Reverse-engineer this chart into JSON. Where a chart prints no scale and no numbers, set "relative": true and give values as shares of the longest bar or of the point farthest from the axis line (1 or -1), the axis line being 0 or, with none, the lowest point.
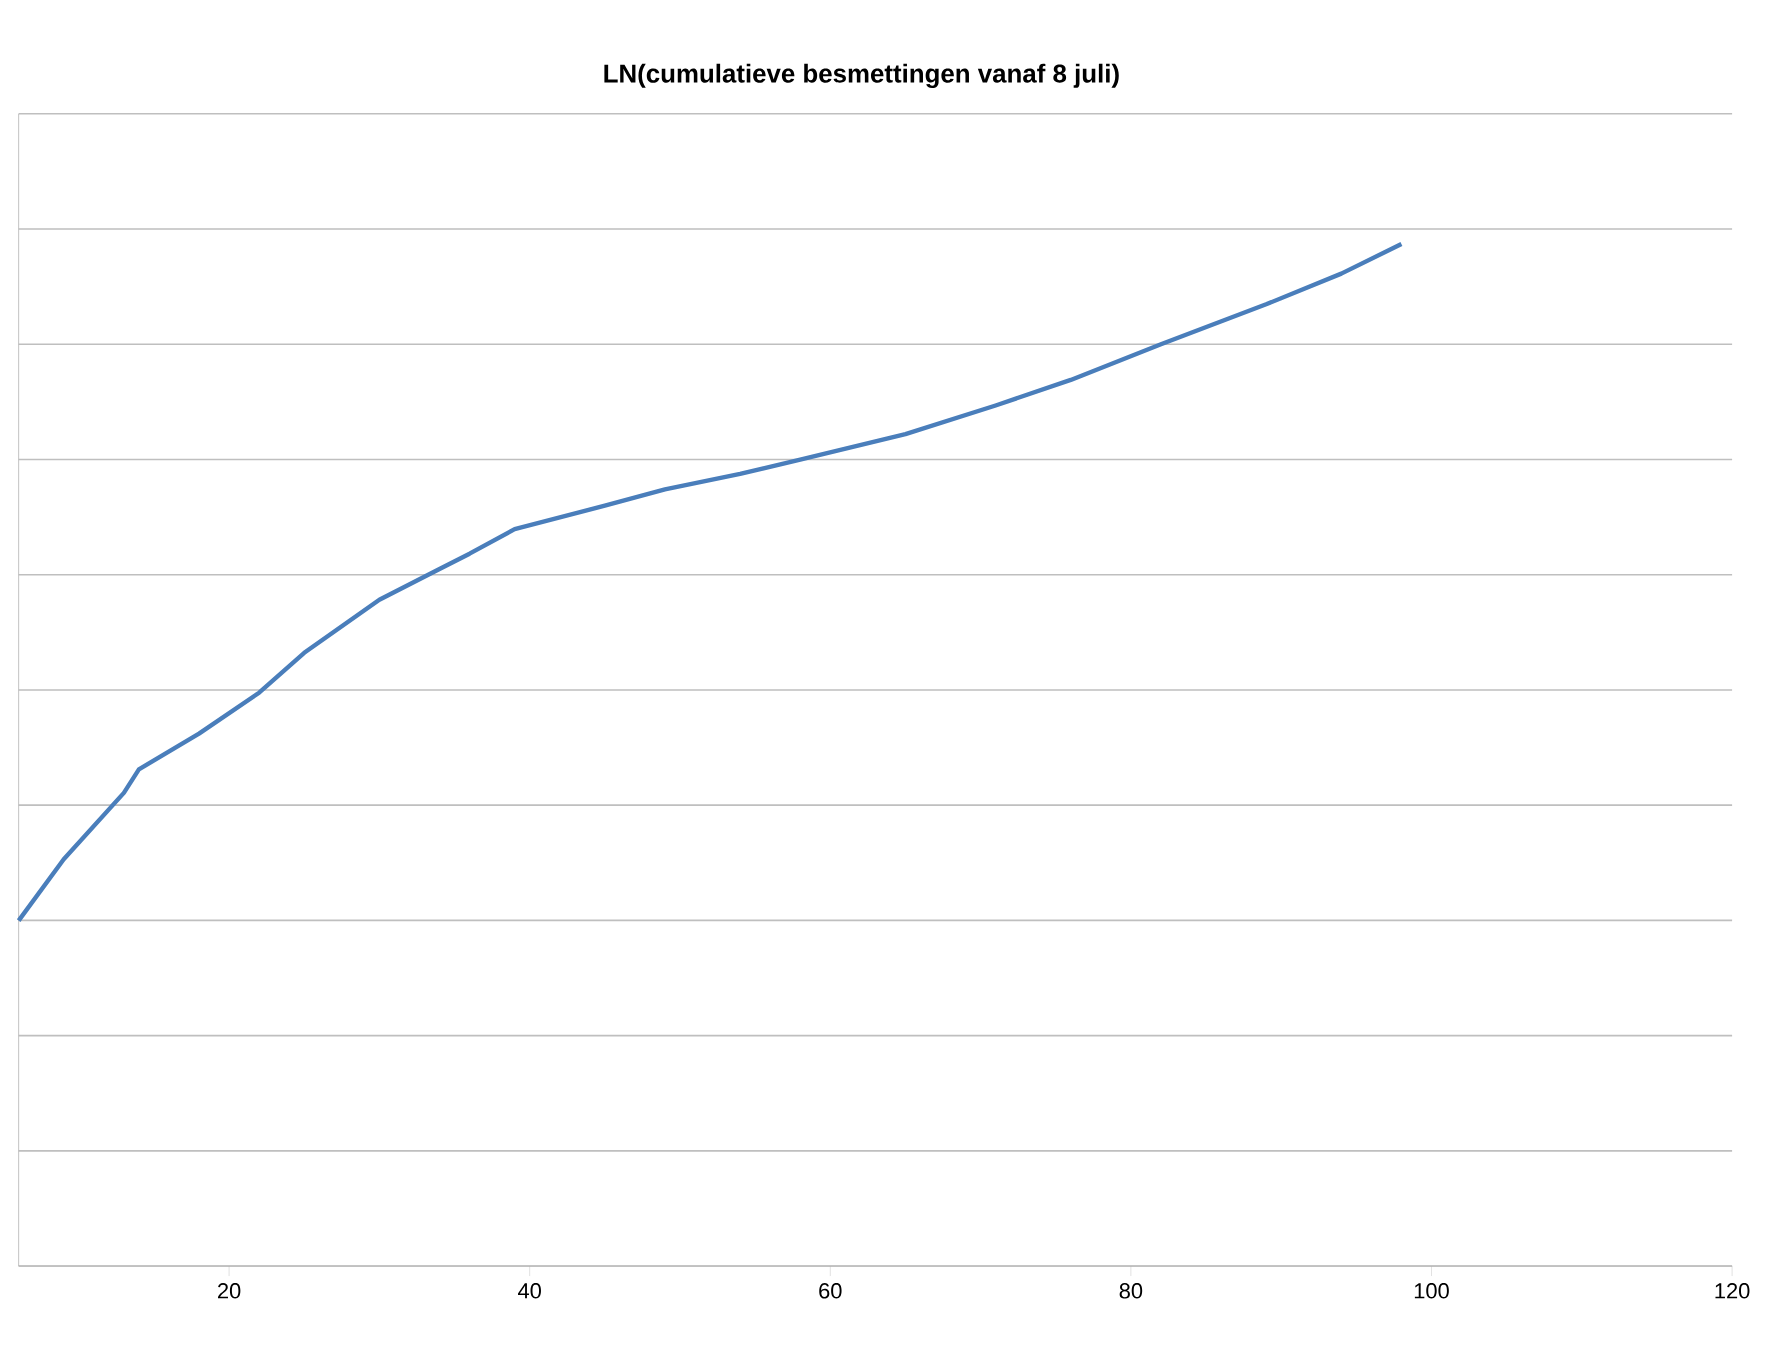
{
  "chart_data": {
    "type": "line",
    "title": "**LN(cumulatieve besmettingen vanaf 8 juli)**",
    "relative": true,
    "grid": "y",
    "marker": "none",
    "line_style": "solid",
    "xlim": [
      6,
      120
    ],
    "xticks": [
      20,
      40,
      60,
      80,
      100,
      120
    ],
    "x": [
      6,
      9,
      13,
      14,
      18,
      22,
      25,
      30,
      34,
      36,
      39,
      45,
      49,
      54,
      58,
      65,
      71,
      76,
      82,
      89,
      94,
      98
    ],
    "series": [
      {
        "color": "#4a7ebb",
        "values": [
          0.338,
          0.398,
          0.463,
          0.486,
          0.521,
          0.561,
          0.6,
          0.652,
          0.682,
          0.697,
          0.721,
          0.744,
          0.76,
          0.775,
          0.789,
          0.814,
          0.842,
          0.867,
          0.902,
          0.941,
          0.971,
          1.0
        ]
      }
    ]
  }
}
